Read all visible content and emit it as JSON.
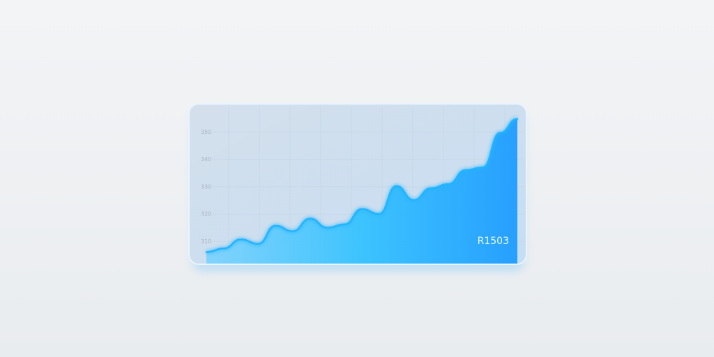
{
  "chart_data": {
    "type": "area",
    "annotation": "R1503",
    "categories": [
      null,
      null,
      null,
      null,
      null,
      null,
      null,
      null,
      null,
      null,
      null,
      null,
      null,
      null,
      null,
      null,
      null,
      null,
      null
    ],
    "values": [
      306.2,
      307.5,
      310.8,
      309.2,
      315.8,
      313.8,
      318.4,
      315.1,
      316.3,
      321.9,
      320.1,
      330.3,
      325.2,
      329.5,
      331.0,
      336.1,
      337.1,
      349.7,
      354.8
    ],
    "color": "#22b4ff",
    "ylim": [
      302,
      360
    ],
    "yticks": [
      310,
      320,
      330,
      340,
      350
    ],
    "grid": true
  }
}
